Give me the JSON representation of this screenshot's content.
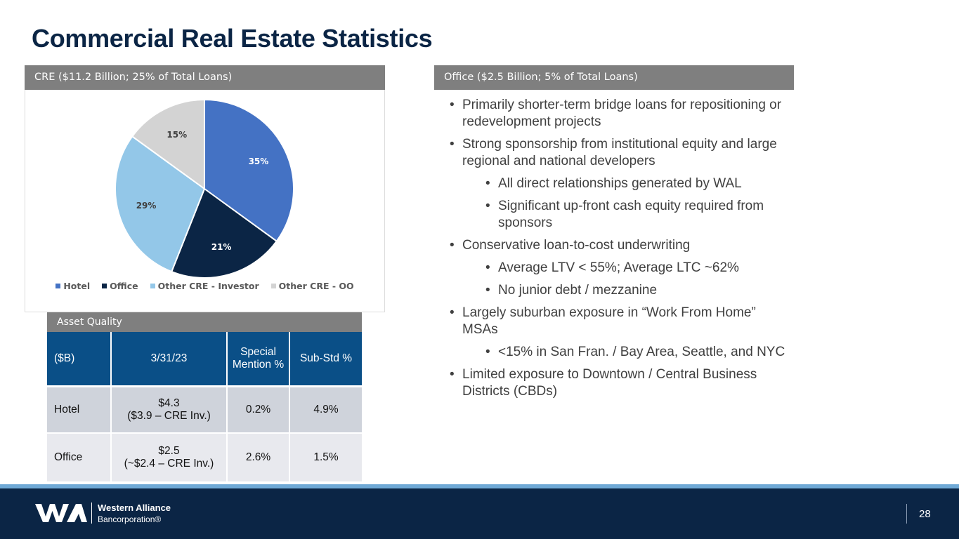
{
  "title": "Commercial Real Estate Statistics",
  "cre_band": "CRE ($11.2 Billion; 25% of Total Loans)",
  "office_band": "Office ($2.5 Billion; 5% of Total Loans)",
  "chart_data": {
    "type": "pie",
    "categories": [
      "Hotel",
      "Office",
      "Other CRE - Investor",
      "Other CRE - OO"
    ],
    "values": [
      35,
      21,
      29,
      15
    ],
    "labels": [
      "35%",
      "21%",
      "29%",
      "15%"
    ],
    "colors": [
      "#4472c4",
      "#0b2545",
      "#93c7e8",
      "#d3d3d3"
    ],
    "label_colors": [
      "#ffffff",
      "#ffffff",
      "#404040",
      "#404040"
    ],
    "legend_position": "bottom"
  },
  "asset_quality": {
    "band": "Asset Quality",
    "headers": [
      "($B)",
      "3/31/23",
      "Special Mention %",
      "Sub-Std %"
    ],
    "rows": [
      {
        "name": "Hotel",
        "balance_line1": "$4.3",
        "balance_line2": "($3.9 – CRE Inv.)",
        "special": "0.2%",
        "substd": "4.9%"
      },
      {
        "name": "Office",
        "balance_line1": "$2.5",
        "balance_line2": "(~$2.4 – CRE Inv.)",
        "special": "2.6%",
        "substd": "1.5%"
      }
    ]
  },
  "bullets": [
    {
      "text": "Primarily shorter-term bridge loans for repositioning or redevelopment projects",
      "level": 1
    },
    {
      "text": "Strong sponsorship from institutional equity and large regional and national developers",
      "level": 1
    },
    {
      "text": "All direct relationships generated by WAL",
      "level": 2
    },
    {
      "text": "Significant up-front cash equity required from sponsors",
      "level": 2
    },
    {
      "text": "Conservative loan-to-cost underwriting",
      "level": 1
    },
    {
      "text": "Average LTV < 55%; Average LTC ~62%",
      "level": 2
    },
    {
      "text": "No junior debt / mezzanine",
      "level": 2
    },
    {
      "text": "Largely suburban exposure in “Work From Home” MSAs",
      "level": 1
    },
    {
      "text": "<15% in San Fran. / Bay Area, Seattle, and NYC",
      "level": 2
    },
    {
      "text": "Limited exposure to Downtown / Central Business Districts (CBDs)",
      "level": 1
    }
  ],
  "footer": {
    "company_line1": "Western Alliance",
    "company_line2": "Bancorporation®",
    "logo_mark": "WA",
    "page_number": "28"
  }
}
